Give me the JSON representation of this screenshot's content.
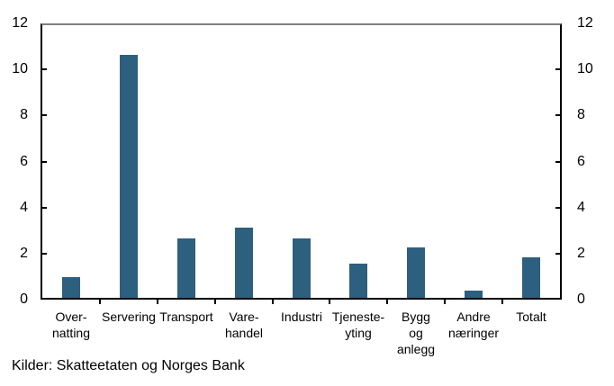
{
  "chart_data": {
    "type": "bar",
    "title": "",
    "categories": [
      "Over-\nnatting",
      "Servering",
      "Transport",
      "Vare-\nhandel",
      "Industri",
      "Tjeneste-\nyting",
      "Bygg\nog\nanlegg",
      "Andre\nnæringer",
      "Totalt"
    ],
    "values": [
      0.9,
      10.7,
      2.6,
      3.1,
      2.6,
      1.5,
      2.2,
      0.3,
      1.8
    ],
    "xlabel": "",
    "ylabel": "",
    "ylim": [
      0,
      12
    ],
    "yticks": [
      0,
      2,
      4,
      6,
      8,
      10,
      12
    ],
    "grid": false,
    "legend_position": "none",
    "dual_y_axis": true,
    "bar_color": "#2d5f7f",
    "axis_color": "#000000",
    "top_border_color": "#808080"
  },
  "source_note": "Kilder: Skatteetaten og Norges Bank"
}
